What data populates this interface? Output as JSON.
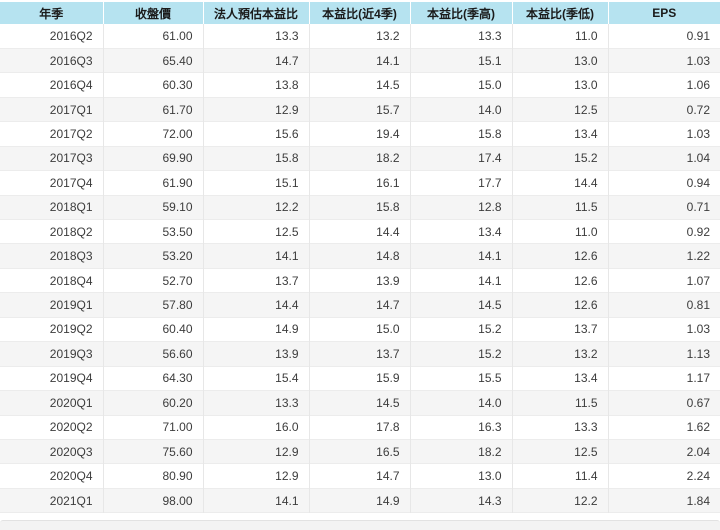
{
  "colors": {
    "header_bg": "#b6e3f0",
    "header_text": "#1b1b1b",
    "row_bg": "#ffffff",
    "row_alt_bg": "#f5f5f5",
    "row_border": "#ececec",
    "cell_text": "#3c3c3c",
    "footer_bar_bg": "#f3f3f3",
    "footer_bar_border": "#e2e2e2"
  },
  "chart_data": {
    "type": "table",
    "columns": [
      "年季",
      "收盤價",
      "法人預估本益比",
      "本益比(近4季)",
      "本益比(季高)",
      "本益比(季低)",
      "EPS"
    ],
    "rows": [
      [
        "2016Q2",
        "61.00",
        "13.3",
        "13.2",
        "13.3",
        "11.0",
        "0.91"
      ],
      [
        "2016Q3",
        "65.40",
        "14.7",
        "14.1",
        "15.1",
        "13.0",
        "1.03"
      ],
      [
        "2016Q4",
        "60.30",
        "13.8",
        "14.5",
        "15.0",
        "13.0",
        "1.06"
      ],
      [
        "2017Q1",
        "61.70",
        "12.9",
        "15.7",
        "14.0",
        "12.5",
        "0.72"
      ],
      [
        "2017Q2",
        "72.00",
        "15.6",
        "19.4",
        "15.8",
        "13.4",
        "1.03"
      ],
      [
        "2017Q3",
        "69.90",
        "15.8",
        "18.2",
        "17.4",
        "15.2",
        "1.04"
      ],
      [
        "2017Q4",
        "61.90",
        "15.1",
        "16.1",
        "17.7",
        "14.4",
        "0.94"
      ],
      [
        "2018Q1",
        "59.10",
        "12.2",
        "15.8",
        "12.8",
        "11.5",
        "0.71"
      ],
      [
        "2018Q2",
        "53.50",
        "12.5",
        "14.4",
        "13.4",
        "11.0",
        "0.92"
      ],
      [
        "2018Q3",
        "53.20",
        "14.1",
        "14.8",
        "14.1",
        "12.6",
        "1.22"
      ],
      [
        "2018Q4",
        "52.70",
        "13.7",
        "13.9",
        "14.1",
        "12.6",
        "1.07"
      ],
      [
        "2019Q1",
        "57.80",
        "14.4",
        "14.7",
        "14.5",
        "12.6",
        "0.81"
      ],
      [
        "2019Q2",
        "60.40",
        "14.9",
        "15.0",
        "15.2",
        "13.7",
        "1.03"
      ],
      [
        "2019Q3",
        "56.60",
        "13.9",
        "13.7",
        "15.2",
        "13.2",
        "1.13"
      ],
      [
        "2019Q4",
        "64.30",
        "15.4",
        "15.9",
        "15.5",
        "13.4",
        "1.17"
      ],
      [
        "2020Q1",
        "60.20",
        "13.3",
        "14.5",
        "14.0",
        "11.5",
        "0.67"
      ],
      [
        "2020Q2",
        "71.00",
        "16.0",
        "17.8",
        "16.3",
        "13.3",
        "1.62"
      ],
      [
        "2020Q3",
        "75.60",
        "12.9",
        "16.5",
        "18.2",
        "12.5",
        "2.04"
      ],
      [
        "2020Q4",
        "80.90",
        "12.9",
        "14.7",
        "13.0",
        "11.4",
        "2.24"
      ],
      [
        "2021Q1",
        "98.00",
        "14.1",
        "14.9",
        "14.3",
        "12.2",
        "1.84"
      ]
    ]
  }
}
